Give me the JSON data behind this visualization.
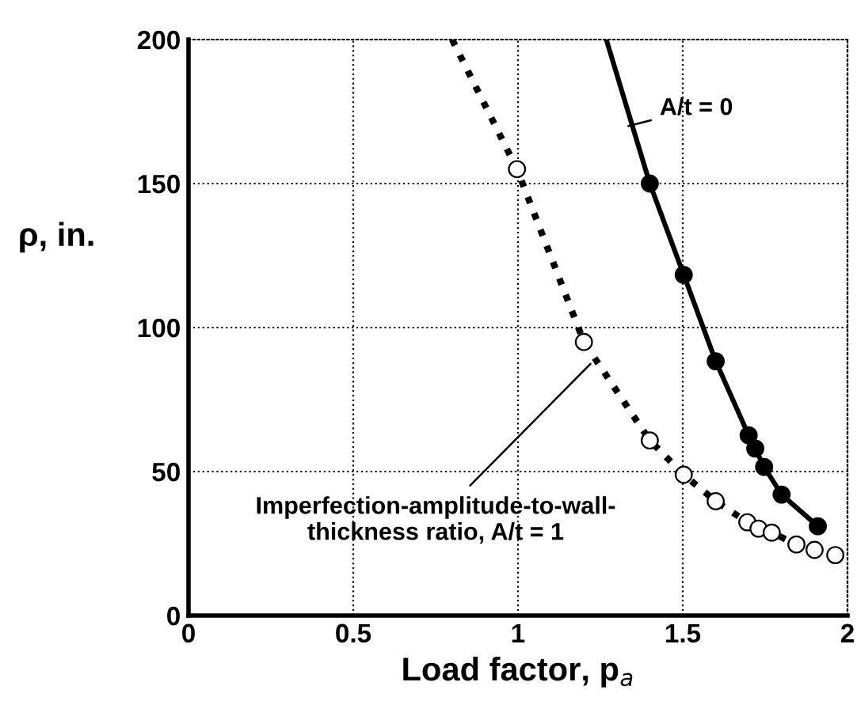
{
  "chart_data": {
    "type": "line",
    "xlabel": "Load factor, p$_{a}$",
    "ylabel": "ρ, in.",
    "xlim": [
      0,
      2
    ],
    "ylim": [
      0,
      200
    ],
    "xticks": [
      0,
      0.5,
      1,
      1.5,
      2
    ],
    "yticks": [
      0,
      50,
      100,
      150,
      200
    ],
    "grid": true,
    "series": [
      {
        "color": "#000000",
        "line_style": "solid",
        "marker": "none",
        "x": [
          1.268,
          1.4,
          1.503,
          1.6,
          1.7,
          1.72,
          1.747,
          1.8,
          1.91
        ],
        "values": [
          200,
          150,
          118.3,
          88.3,
          62.6,
          58,
          51.6,
          42,
          31
        ]
      },
      {
        "type": "scatter",
        "color": "#000000",
        "marker": "circle",
        "x": [
          1.4,
          1.503,
          1.6,
          1.7,
          1.72,
          1.747,
          1.8,
          1.91
        ],
        "values": [
          150,
          118.3,
          88.3,
          62.6,
          58,
          51.6,
          42,
          31
        ]
      },
      {
        "color": "#000000",
        "line_style": "dotted",
        "marker": "none",
        "x": [
          0.8,
          0.997,
          1.2,
          1.4,
          1.503,
          1.6,
          1.696,
          1.73,
          1.77,
          1.845,
          1.9,
          1.963
        ],
        "values": [
          200,
          155,
          95,
          60.8,
          48.9,
          39.7,
          32.4,
          30.2,
          28.8,
          24.7,
          22.8,
          21.0
        ]
      },
      {
        "type": "scatter",
        "color": "#ffffff",
        "marker": "circle",
        "x": [
          0.997,
          1.2,
          1.4,
          1.503,
          1.6,
          1.696,
          1.73,
          1.77,
          1.845,
          1.9,
          1.963
        ],
        "values": [
          155,
          95,
          60.8,
          48.9,
          39.7,
          32.4,
          30.2,
          28.8,
          24.7,
          22.8,
          21.0
        ]
      }
    ],
    "annotations": [
      {
        "text": "A/t = 0",
        "x": 1.335,
        "y": 170
      },
      {
        "text": "Imperfection-amplitude-to-wall-\nthickness ratio, A/t = 1",
        "x": 1.22,
        "y": 87.4
      }
    ]
  }
}
